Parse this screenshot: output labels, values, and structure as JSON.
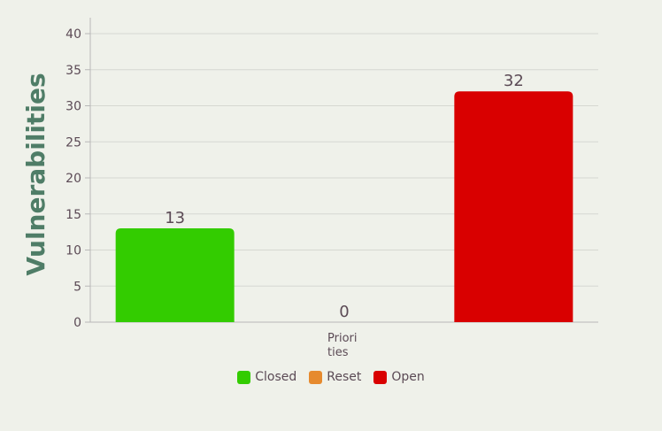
{
  "chart_data": {
    "type": "bar",
    "categories": [
      "Priorities"
    ],
    "category_display": [
      "Priori",
      "ties"
    ],
    "ylabel": "Vulnerabilities",
    "ylim": [
      0,
      40
    ],
    "yticks": [
      0,
      5,
      10,
      15,
      20,
      25,
      30,
      35,
      40
    ],
    "grid": true,
    "legend_position": "bottom",
    "series": [
      {
        "name": "Closed",
        "values": [
          13
        ],
        "color": "#33cc00",
        "label": "13"
      },
      {
        "name": "Reset",
        "values": [
          0
        ],
        "color": "#e68a2e",
        "label": "0"
      },
      {
        "name": "Open",
        "values": [
          32
        ],
        "color": "#d90000",
        "label": "32"
      }
    ]
  }
}
